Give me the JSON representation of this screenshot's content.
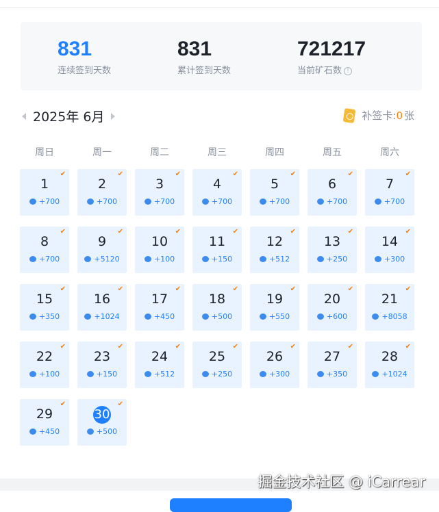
{
  "stats": [
    {
      "value": "831",
      "label": "连续签到天数",
      "color": "#1e80ff"
    },
    {
      "value": "831",
      "label": "累计签到天数"
    },
    {
      "value": "721217",
      "label": "当前矿石数",
      "info_icon": "info-circle-icon"
    }
  ],
  "calendar": {
    "title": "2025年 6月",
    "makeup_label": "补签卡:",
    "makeup_count": "0",
    "makeup_unit": "张",
    "weekdays": [
      "周日",
      "周一",
      "周二",
      "周三",
      "周四",
      "周五",
      "周六"
    ],
    "today": 30,
    "days": [
      {
        "day": "1",
        "reward": "+700"
      },
      {
        "day": "2",
        "reward": "+700"
      },
      {
        "day": "3",
        "reward": "+700"
      },
      {
        "day": "4",
        "reward": "+700"
      },
      {
        "day": "5",
        "reward": "+700"
      },
      {
        "day": "6",
        "reward": "+700"
      },
      {
        "day": "7",
        "reward": "+700"
      },
      {
        "day": "8",
        "reward": "+700"
      },
      {
        "day": "9",
        "reward": "+5120"
      },
      {
        "day": "10",
        "reward": "+100"
      },
      {
        "day": "11",
        "reward": "+150"
      },
      {
        "day": "12",
        "reward": "+512"
      },
      {
        "day": "13",
        "reward": "+250"
      },
      {
        "day": "14",
        "reward": "+300"
      },
      {
        "day": "15",
        "reward": "+350"
      },
      {
        "day": "16",
        "reward": "+1024"
      },
      {
        "day": "17",
        "reward": "+450"
      },
      {
        "day": "18",
        "reward": "+500"
      },
      {
        "day": "19",
        "reward": "+550"
      },
      {
        "day": "20",
        "reward": "+600"
      },
      {
        "day": "21",
        "reward": "+8058"
      },
      {
        "day": "22",
        "reward": "+100"
      },
      {
        "day": "23",
        "reward": "+150"
      },
      {
        "day": "24",
        "reward": "+512"
      },
      {
        "day": "25",
        "reward": "+250"
      },
      {
        "day": "26",
        "reward": "+300"
      },
      {
        "day": "27",
        "reward": "+350"
      },
      {
        "day": "28",
        "reward": "+1024"
      },
      {
        "day": "29",
        "reward": "+450"
      },
      {
        "day": "30",
        "reward": "+500"
      }
    ]
  },
  "watermark": "掘金技术社区 @ iCarrear"
}
